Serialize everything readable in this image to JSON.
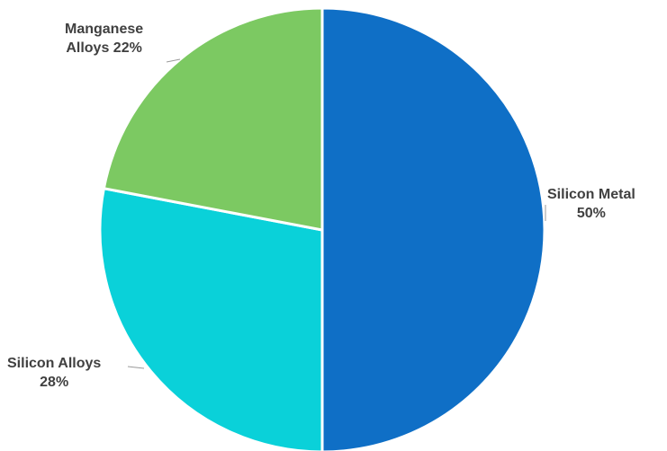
{
  "chart_data": {
    "type": "pie",
    "title": "",
    "slices": [
      {
        "label": "Silicon Metal",
        "value": 50,
        "value_label": "50%",
        "color": "#0F6FC6"
      },
      {
        "label": "Silicon Alloys",
        "value": 28,
        "value_label": "28%",
        "color": "#0AD1D9"
      },
      {
        "label": "Manganese Alloys",
        "value": 22,
        "value_label": "22%",
        "color": "#7CC962"
      }
    ],
    "start_angle": "top",
    "direction": "clockwise",
    "legend": "none",
    "data_labels": "outside"
  },
  "labels": {
    "silicon_metal": {
      "line1": "Silicon Metal",
      "line2": "50%"
    },
    "silicon_alloys": {
      "line1": "Silicon Alloys",
      "line2": "28%"
    },
    "manganese_alloys": {
      "line1": "Manganese",
      "line2": "Alloys 22%"
    }
  }
}
